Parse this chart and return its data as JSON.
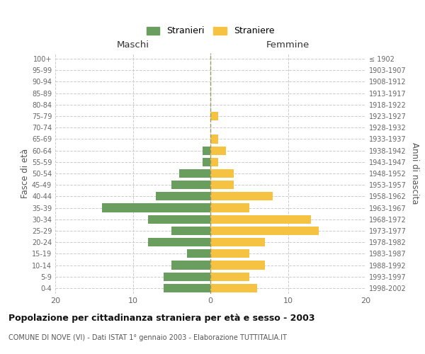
{
  "age_groups": [
    "0-4",
    "5-9",
    "10-14",
    "15-19",
    "20-24",
    "25-29",
    "30-34",
    "35-39",
    "40-44",
    "45-49",
    "50-54",
    "55-59",
    "60-64",
    "65-69",
    "70-74",
    "75-79",
    "80-84",
    "85-89",
    "90-94",
    "95-99",
    "100+"
  ],
  "birth_years": [
    "1998-2002",
    "1993-1997",
    "1988-1992",
    "1983-1987",
    "1978-1982",
    "1973-1977",
    "1968-1972",
    "1963-1967",
    "1958-1962",
    "1953-1957",
    "1948-1952",
    "1943-1947",
    "1938-1942",
    "1933-1937",
    "1928-1932",
    "1923-1927",
    "1918-1922",
    "1913-1917",
    "1908-1912",
    "1903-1907",
    "≤ 1902"
  ],
  "maschi": [
    6,
    6,
    5,
    3,
    8,
    5,
    8,
    14,
    7,
    5,
    4,
    1,
    1,
    0,
    0,
    0,
    0,
    0,
    0,
    0,
    0
  ],
  "femmine": [
    6,
    5,
    7,
    5,
    7,
    14,
    13,
    5,
    8,
    3,
    3,
    1,
    2,
    1,
    0,
    1,
    0,
    0,
    0,
    0,
    0
  ],
  "maschi_color": "#6a9e5e",
  "femmine_color": "#f5c242",
  "title_main": "Popolazione per cittadinanza straniera per età e sesso - 2003",
  "subtitle": "COMUNE DI NOVE (VI) - Dati ISTAT 1° gennaio 2003 - Elaborazione TUTTITALIA.IT",
  "legend_maschi": "Stranieri",
  "legend_femmine": "Straniere",
  "xlabel_left": "Maschi",
  "xlabel_right": "Femmine",
  "ylabel_left": "Fasce di età",
  "ylabel_right": "Anni di nascita",
  "xlim": 20,
  "background_color": "#ffffff",
  "grid_color": "#cccccc"
}
